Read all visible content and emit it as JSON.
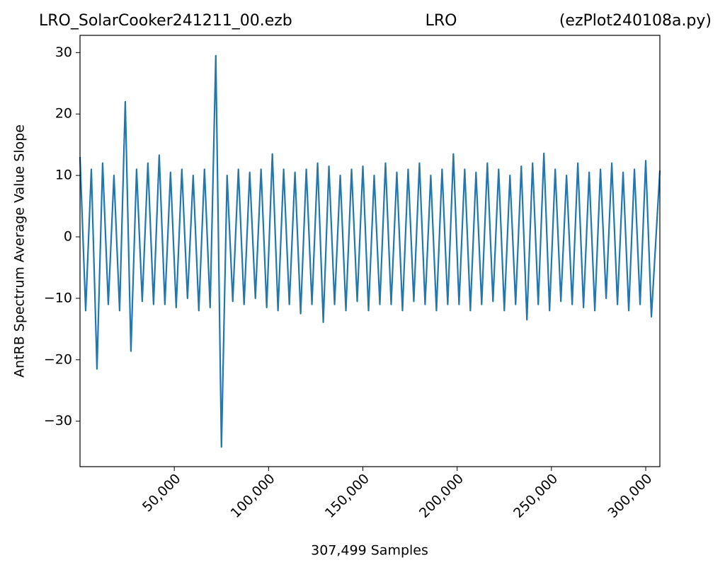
{
  "chart_data": {
    "type": "line",
    "titles": [
      "LRO_SolarCooker241211_00.ezb",
      "LRO",
      "(ezPlot240108a.py)"
    ],
    "xlabel": "307,499 Samples",
    "ylabel": "AntRB Spectrum Average Value Slope",
    "xlim": [
      0,
      307499
    ],
    "ylim": [
      -37.4,
      32.8
    ],
    "xticks": [
      {
        "value": 50000,
        "label": "50,000"
      },
      {
        "value": 100000,
        "label": "100,000"
      },
      {
        "value": 150000,
        "label": "150,000"
      },
      {
        "value": 200000,
        "label": "200,000"
      },
      {
        "value": 250000,
        "label": "250,000"
      },
      {
        "value": 300000,
        "label": "300,000"
      }
    ],
    "yticks": [
      {
        "value": -30,
        "label": "−30"
      },
      {
        "value": -20,
        "label": "−20"
      },
      {
        "value": -10,
        "label": "−10"
      },
      0,
      10,
      20,
      30
    ],
    "grid": false,
    "x": [
      0,
      3000,
      6000,
      9000,
      12000,
      15000,
      18000,
      21000,
      24000,
      27000,
      30000,
      33000,
      36000,
      39000,
      42000,
      45000,
      48000,
      51000,
      54000,
      57000,
      60000,
      63000,
      66000,
      69000,
      72000,
      75000,
      78000,
      81000,
      84000,
      87000,
      90000,
      93000,
      96000,
      99000,
      102000,
      105000,
      108000,
      111000,
      114000,
      117000,
      120000,
      123000,
      126000,
      129000,
      132000,
      135000,
      138000,
      141000,
      144000,
      147000,
      150000,
      153000,
      156000,
      159000,
      162000,
      165000,
      168000,
      171000,
      174000,
      177000,
      180000,
      183000,
      186000,
      189000,
      192000,
      195000,
      198000,
      201000,
      204000,
      207000,
      210000,
      213000,
      216000,
      219000,
      222000,
      225000,
      228000,
      231000,
      234000,
      237000,
      240000,
      243000,
      246000,
      249000,
      252000,
      255000,
      258000,
      261000,
      264000,
      267000,
      270000,
      273000,
      276000,
      279000,
      282000,
      285000,
      288000,
      291000,
      294000,
      297000,
      300000,
      303000,
      307499
    ],
    "series": [
      {
        "color": "#1f77b4",
        "values": [
          13,
          -12,
          11,
          -21.5,
          12,
          -11,
          10,
          -12,
          22,
          -18.6,
          11,
          -10.5,
          12,
          -11,
          13.3,
          -11,
          10.5,
          -11.5,
          11,
          -10,
          10,
          -12,
          11,
          -11.5,
          29.5,
          -34.2,
          10,
          -10.5,
          11,
          -11,
          10.5,
          -10,
          11,
          -11.5,
          13.5,
          -12,
          11,
          -11,
          10.5,
          -12.5,
          11,
          -11,
          12,
          -13.9,
          11.5,
          -11,
          10,
          -12,
          11,
          -10.5,
          11.5,
          -12,
          10,
          -11,
          12,
          -11,
          10.5,
          -12,
          11,
          -10.5,
          12,
          -11,
          10,
          -12,
          11,
          -11,
          13.5,
          -11,
          11,
          -12,
          10.5,
          -11,
          12,
          -10.5,
          11,
          -12,
          10,
          -11,
          11.5,
          -13.5,
          12,
          -11,
          13.6,
          -12,
          11,
          -10.5,
          10,
          -11,
          12,
          -11.5,
          10.5,
          -12,
          11,
          -10,
          12,
          -11,
          10.5,
          -12,
          11,
          -11,
          12.4,
          -13,
          10.8
        ]
      }
    ]
  }
}
